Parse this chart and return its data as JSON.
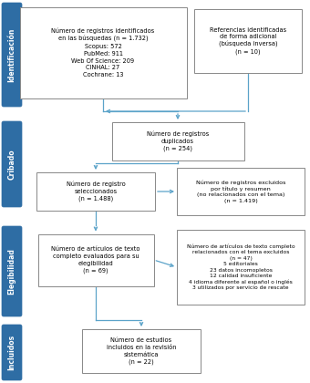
{
  "bg_color": "#ffffff",
  "sidebar_color": "#2e6da4",
  "sidebar_text_color": "#ffffff",
  "box_facecolor": "#ffffff",
  "box_edgecolor": "#888888",
  "arrow_color": "#5ba3c9",
  "sidebar_labels": [
    "Identificación",
    "Cribado",
    "Elegibilidad",
    "Incluidos"
  ],
  "box1_text": "Número de registros identificados\nen las búsquedas (n = 1.732)\nScopus: 572\nPubMed: 911\nWeb Of Science: 209\nCINHAL: 27\nCochrane: 13",
  "box2_text": "Referencias identificadas\nde forma adicional\n(búsqueda inversa)\n(n = 10)",
  "box3_text": "Número de registros\nduplicados\n(n = 254)",
  "box4_text": "Número de registro\nseleccionados\n(n = 1.488)",
  "box5_text": "Número de registros excluidos\npor título y resumen\n(no relacionados con el tema)\n(n = 1.419)",
  "box6_text": "Número de artículos de texto\ncompleto evaluados para su\nelegibilidad\n(n = 69)",
  "box7_text": "Número de artículos de texto completo\nrelacionados con el tema excluidos\n(n = 47)\n5 editoriales\n23 datos incomopletos\n12 calidad insuficiente\n4 idioma diferente al español o inglés\n3 utilizados por servicio de rescate",
  "box8_text": "Número de estudios\nincluidos en la revisión\nsistemática\n(n = 22)"
}
